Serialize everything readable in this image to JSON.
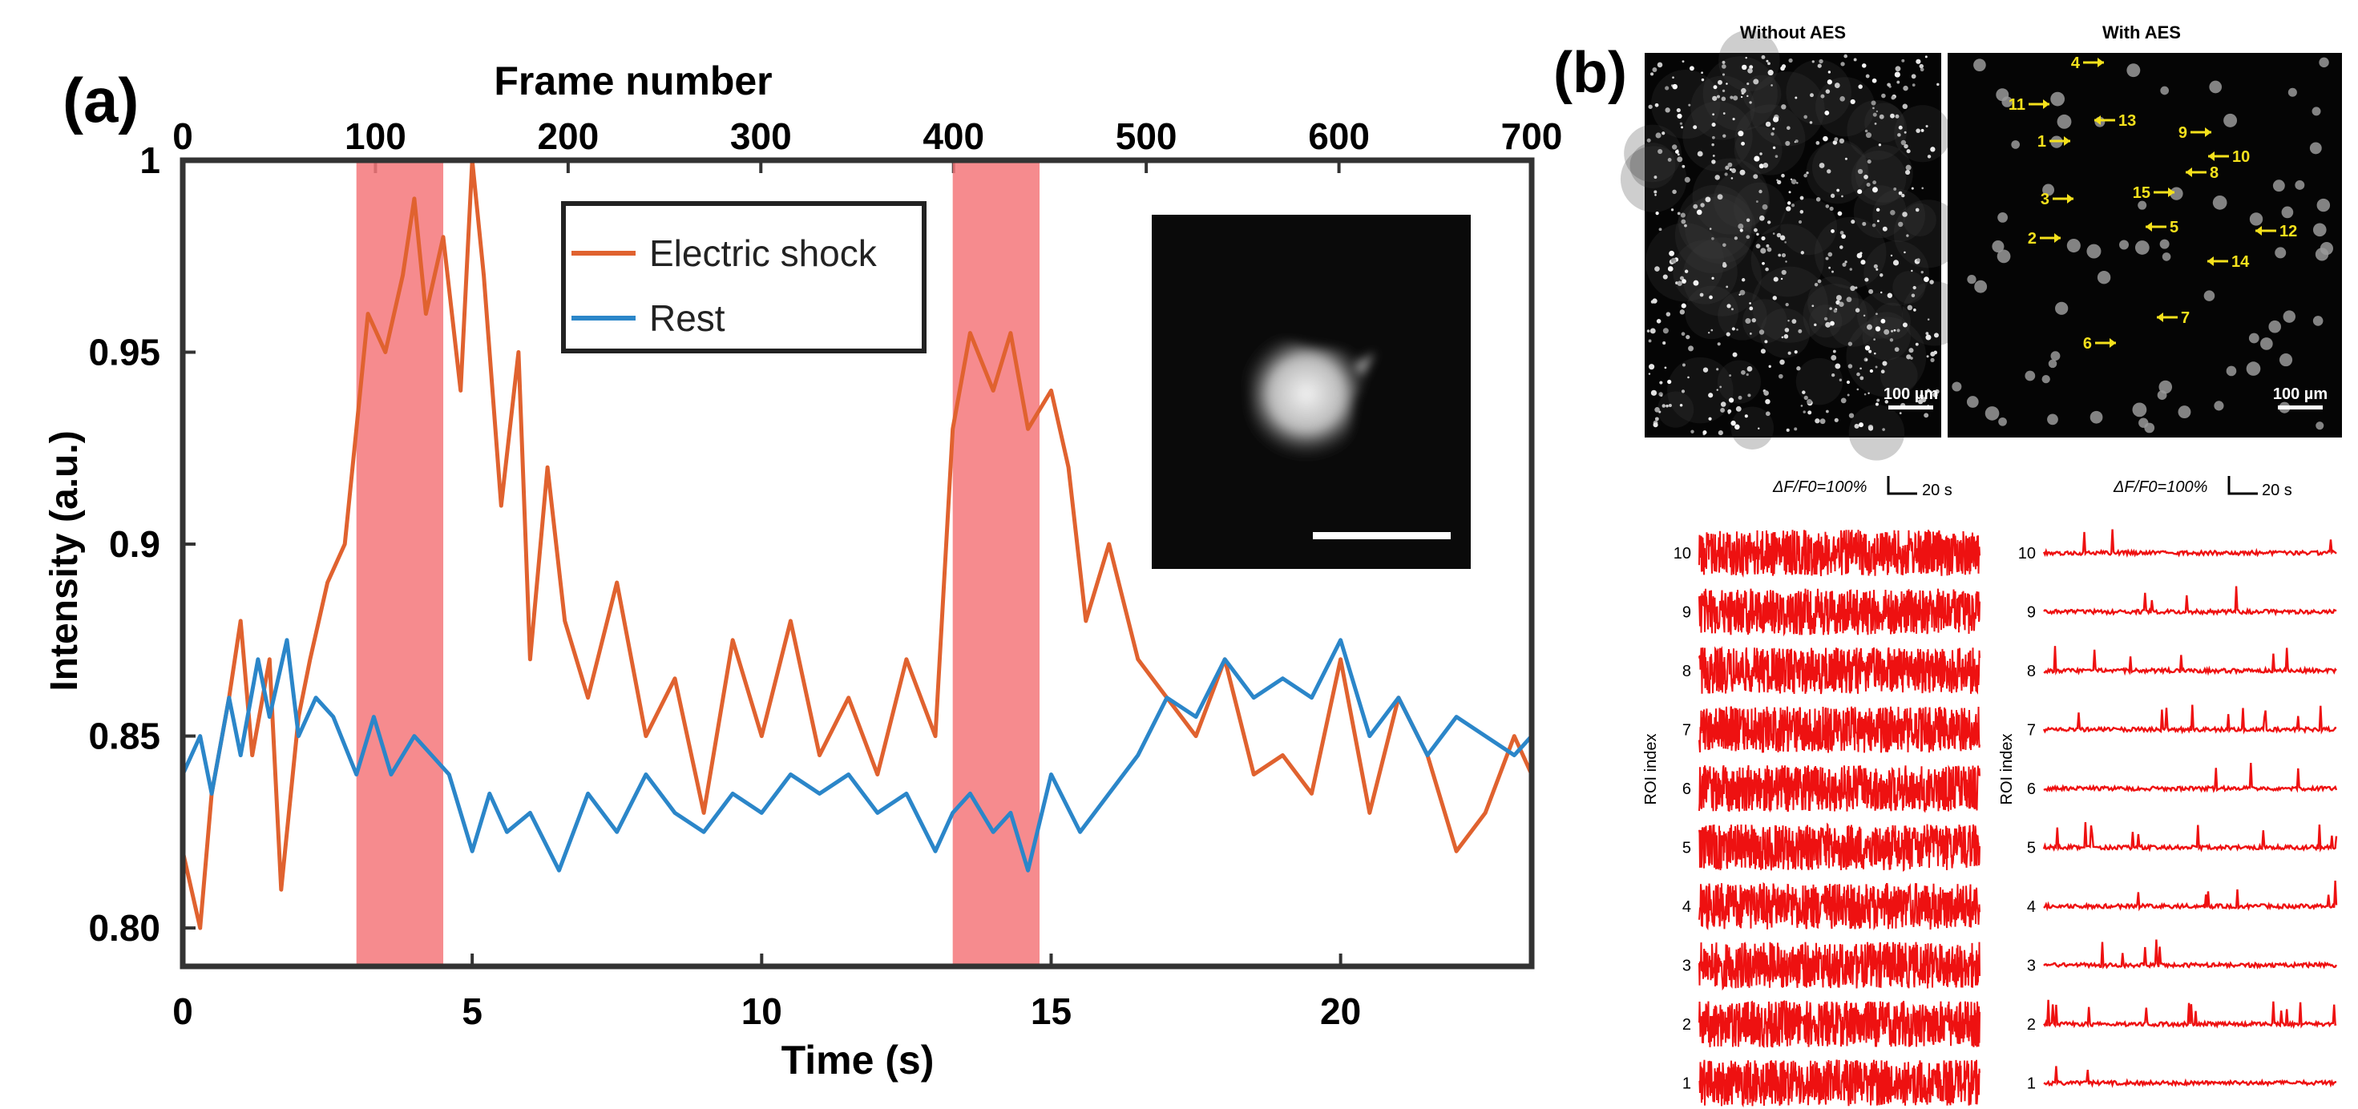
{
  "panel_a": {
    "label": "(a)",
    "top_axis_label": "Frame number",
    "top_ticks": [
      "0",
      "100",
      "200",
      "300",
      "400",
      "500",
      "600",
      "700"
    ],
    "inset_description": "single neuron fluorescence image"
  },
  "panel_b": {
    "label": "(b)",
    "img_left_title": "Without AES",
    "img_right_title": "With AES",
    "scalebar_label": "100 µm",
    "roi_markers": [
      "1",
      "2",
      "3",
      "4",
      "5",
      "6",
      "7",
      "8",
      "9",
      "10",
      "11",
      "12",
      "13",
      "14",
      "15"
    ],
    "trace_scale_label": "ΔF/F0=100%",
    "trace_time_label": "20 s",
    "trace_ylabel": "ROI index",
    "roi_indices": [
      "1",
      "2",
      "3",
      "4",
      "5",
      "6",
      "7",
      "8",
      "9",
      "10"
    ]
  },
  "colors": {
    "shock": "#e0622f",
    "rest": "#2b86c9",
    "highlight": "#f4777a",
    "roi_marker": "#f5e11c",
    "trace": "#ee1111"
  },
  "chart_data": [
    {
      "type": "line",
      "title": "",
      "xlabel": "Time (s)",
      "ylabel": "Intensity (a.u.)",
      "xlim": [
        0,
        23.3
      ],
      "ylim": [
        0.79,
        1.0
      ],
      "xticks": [
        "0",
        "5",
        "10",
        "15",
        "20"
      ],
      "yticks": [
        "0.80",
        "0.85",
        "0.9",
        "0.95",
        "1"
      ],
      "legend": {
        "placement": "top-center",
        "entries": [
          "Electric shock",
          "Rest"
        ]
      },
      "shaded_regions": [
        [
          3.0,
          4.5
        ],
        [
          13.3,
          14.8
        ]
      ],
      "series": [
        {
          "name": "Electric shock",
          "color": "#e0622f",
          "x": [
            0,
            0.3,
            0.5,
            0.8,
            1.0,
            1.2,
            1.5,
            1.7,
            2.0,
            2.2,
            2.5,
            2.8,
            3.0,
            3.2,
            3.5,
            3.8,
            4.0,
            4.2,
            4.5,
            4.8,
            5.0,
            5.2,
            5.5,
            5.8,
            6.0,
            6.3,
            6.6,
            7.0,
            7.5,
            8.0,
            8.5,
            9.0,
            9.5,
            10.0,
            10.5,
            11.0,
            11.5,
            12.0,
            12.5,
            13.0,
            13.3,
            13.6,
            14.0,
            14.3,
            14.6,
            15.0,
            15.3,
            15.6,
            16.0,
            16.5,
            17.0,
            17.5,
            18.0,
            18.5,
            19.0,
            19.5,
            20.0,
            20.5,
            21.0,
            21.5,
            22.0,
            22.5,
            23.0,
            23.3
          ],
          "y": [
            0.82,
            0.8,
            0.835,
            0.86,
            0.88,
            0.845,
            0.87,
            0.81,
            0.855,
            0.87,
            0.89,
            0.9,
            0.93,
            0.96,
            0.95,
            0.97,
            0.99,
            0.96,
            0.98,
            0.94,
            1.0,
            0.97,
            0.91,
            0.95,
            0.87,
            0.92,
            0.88,
            0.86,
            0.89,
            0.85,
            0.865,
            0.83,
            0.875,
            0.85,
            0.88,
            0.845,
            0.86,
            0.84,
            0.87,
            0.85,
            0.93,
            0.955,
            0.94,
            0.955,
            0.93,
            0.94,
            0.92,
            0.88,
            0.9,
            0.87,
            0.86,
            0.85,
            0.87,
            0.84,
            0.845,
            0.835,
            0.87,
            0.83,
            0.86,
            0.845,
            0.82,
            0.83,
            0.85,
            0.84
          ]
        },
        {
          "name": "Rest",
          "color": "#2b86c9",
          "x": [
            0,
            0.3,
            0.5,
            0.8,
            1.0,
            1.3,
            1.5,
            1.8,
            2.0,
            2.3,
            2.6,
            3.0,
            3.3,
            3.6,
            4.0,
            4.3,
            4.6,
            5.0,
            5.3,
            5.6,
            6.0,
            6.5,
            7.0,
            7.5,
            8.0,
            8.5,
            9.0,
            9.5,
            10.0,
            10.5,
            11.0,
            11.5,
            12.0,
            12.5,
            13.0,
            13.3,
            13.6,
            14.0,
            14.3,
            14.6,
            15.0,
            15.5,
            16.0,
            16.5,
            17.0,
            17.5,
            18.0,
            18.5,
            19.0,
            19.5,
            20.0,
            20.5,
            21.0,
            21.5,
            22.0,
            22.5,
            23.0,
            23.3
          ],
          "y": [
            0.84,
            0.85,
            0.835,
            0.86,
            0.845,
            0.87,
            0.855,
            0.875,
            0.85,
            0.86,
            0.855,
            0.84,
            0.855,
            0.84,
            0.85,
            0.845,
            0.84,
            0.82,
            0.835,
            0.825,
            0.83,
            0.815,
            0.835,
            0.825,
            0.84,
            0.83,
            0.825,
            0.835,
            0.83,
            0.84,
            0.835,
            0.84,
            0.83,
            0.835,
            0.82,
            0.83,
            0.835,
            0.825,
            0.83,
            0.815,
            0.84,
            0.825,
            0.835,
            0.845,
            0.86,
            0.855,
            0.87,
            0.86,
            0.865,
            0.86,
            0.875,
            0.85,
            0.86,
            0.845,
            0.855,
            0.85,
            0.845,
            0.85
          ]
        }
      ]
    },
    {
      "type": "line",
      "title": "Without AES",
      "xlabel": "",
      "ylabel": "ROI index",
      "categories": [
        "1",
        "2",
        "3",
        "4",
        "5",
        "6",
        "7",
        "8",
        "9",
        "10"
      ],
      "note": "10 dense noisy ΔF/F traces, one per ROI"
    },
    {
      "type": "line",
      "title": "With AES",
      "xlabel": "",
      "ylabel": "ROI index",
      "categories": [
        "1",
        "2",
        "3",
        "4",
        "5",
        "6",
        "7",
        "8",
        "9",
        "10"
      ],
      "note": "10 clean ΔF/F traces with sparse transients"
    }
  ]
}
